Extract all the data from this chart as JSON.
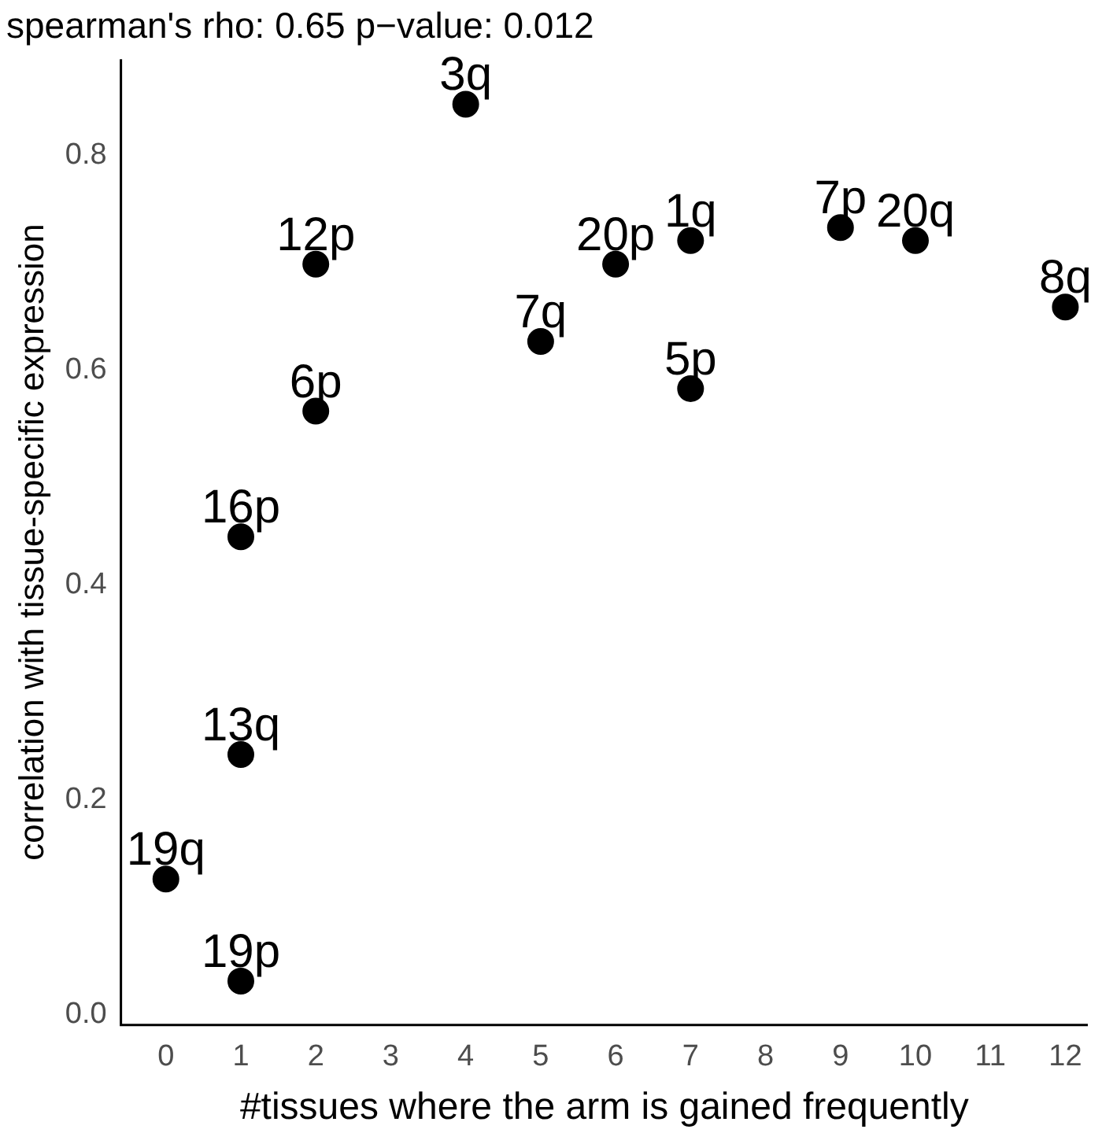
{
  "chart_data": {
    "type": "scatter",
    "title": "spearman's rho: 0.65 p−value: 0.012",
    "xlabel": "#tissues where the arm is gained frequently",
    "ylabel": "correlation with tissue-specific expression",
    "x": [
      4,
      2,
      2,
      1,
      1,
      0,
      1,
      5,
      6,
      7,
      7,
      9,
      10,
      12
    ],
    "values": [
      0.848,
      0.699,
      0.562,
      0.445,
      0.242,
      0.126,
      0.031,
      0.627,
      0.699,
      0.721,
      0.583,
      0.733,
      0.721,
      0.659
    ],
    "annotations": [
      {
        "text": "3q",
        "x": 4,
        "y": 0.848
      },
      {
        "text": "12p",
        "x": 2,
        "y": 0.699
      },
      {
        "text": "6p",
        "x": 2,
        "y": 0.562
      },
      {
        "text": "16p",
        "x": 1,
        "y": 0.445
      },
      {
        "text": "13q",
        "x": 1,
        "y": 0.242
      },
      {
        "text": "19q",
        "x": 0,
        "y": 0.126
      },
      {
        "text": "19p",
        "x": 1,
        "y": 0.031
      },
      {
        "text": "7q",
        "x": 5,
        "y": 0.627
      },
      {
        "text": "20p",
        "x": 6,
        "y": 0.699
      },
      {
        "text": "1q",
        "x": 7,
        "y": 0.721
      },
      {
        "text": "5p",
        "x": 7,
        "y": 0.583
      },
      {
        "text": "7p",
        "x": 9,
        "y": 0.733
      },
      {
        "text": "20q",
        "x": 10,
        "y": 0.721
      },
      {
        "text": "8q",
        "x": 12,
        "y": 0.659
      }
    ],
    "color": "#000000",
    "marker": "circle",
    "grid": false,
    "legend": false,
    "xlim": [
      -0.6,
      12.3
    ],
    "xticks": [
      0,
      1,
      2,
      3,
      4,
      5,
      6,
      7,
      8,
      9,
      10,
      11,
      12
    ],
    "ylim": [
      -0.01,
      0.89
    ],
    "yticks": [
      {
        "value": 0,
        "label": "0.0"
      },
      0.2,
      0.4,
      0.6,
      0.8
    ]
  }
}
